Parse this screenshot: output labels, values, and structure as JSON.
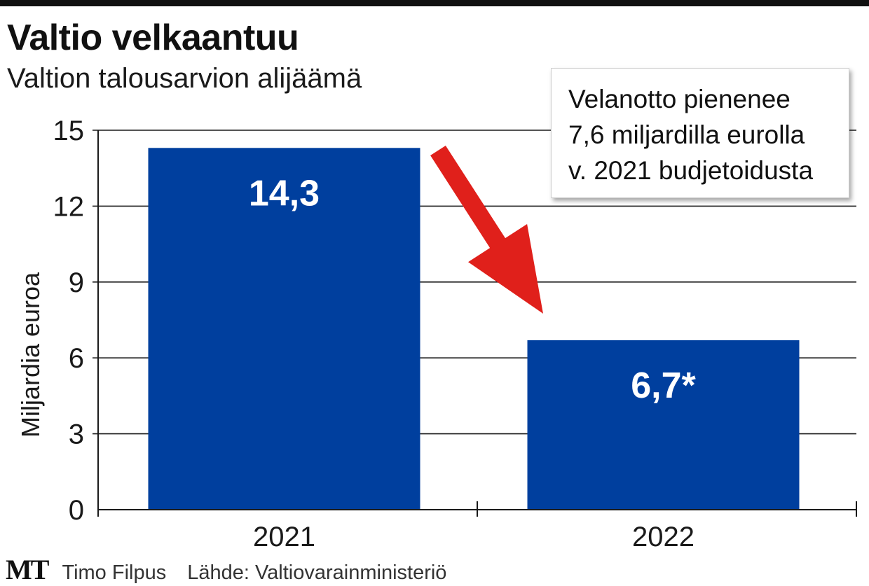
{
  "header": {
    "title": "Valtio velkaantuu",
    "subtitle": "Valtion talousarvion alijäämä"
  },
  "callout": {
    "lines": [
      "Velanotto pienenee",
      "7,6 miljardilla eurolla",
      "v. 2021 budjetoidusta"
    ]
  },
  "footer": {
    "logo": "MT",
    "author": "Timo Filpus",
    "source": "Lähde: Valtiovarainministeriö"
  },
  "chart_data": {
    "type": "bar",
    "categories": [
      "2021",
      "2022"
    ],
    "values": [
      14.3,
      6.7
    ],
    "data_labels": [
      "14,3",
      "6,7*"
    ],
    "ylabel": "Miljardia euroa",
    "ylim": [
      0,
      15
    ],
    "yticks": [
      0,
      3,
      6,
      9,
      12,
      15
    ],
    "grid": true,
    "bar_color": "#003f9e",
    "arrow_color": "#e0201b"
  }
}
